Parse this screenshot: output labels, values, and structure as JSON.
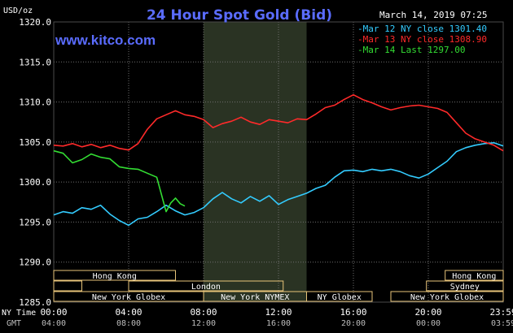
{
  "title": "24 Hour Spot Gold (Bid)",
  "website": "www.kitco.com",
  "timestamp": "March 14, 2019 07:25",
  "unit_label": "USD/oz",
  "row_labels": {
    "ny_time": "NY Time",
    "gmt": "GMT"
  },
  "colors": {
    "background": "#000000",
    "grid": "#6e6e6e",
    "title": "#5a6cff",
    "website": "#5a6cff",
    "axis_text": "#ffffff",
    "gmt_text": "#bdbdbd",
    "session_box": "#e8c47a",
    "ny_shade": "#2a3323",
    "mar12": "#33ccff",
    "mar13": "#ff2a2a",
    "mar14": "#33dd33"
  },
  "sessions": {
    "row1": [
      {
        "label": "Hong Kong",
        "start": 0.0,
        "end": 6.5
      },
      {
        "label": "Hong Kong",
        "start": 20.9,
        "end": 24.0
      }
    ],
    "row2": [
      {
        "label": "",
        "start": 0.0,
        "end": 1.5
      },
      {
        "label": "London",
        "start": 4.0,
        "end": 12.25
      },
      {
        "label": "Sydney",
        "start": 19.9,
        "end": 24.0
      }
    ],
    "row3": [
      {
        "label": "New York Globex",
        "start": 0.0,
        "end": 8.0
      },
      {
        "label": "New York NYMEX",
        "start": 8.0,
        "end": 13.5
      },
      {
        "label": "NY Globex",
        "start": 13.5,
        "end": 17.0
      },
      {
        "label": "New York Globex",
        "start": 18.0,
        "end": 24.0
      }
    ]
  },
  "chart_data": {
    "type": "line",
    "title": "24 Hour Spot Gold (Bid)",
    "ylabel": "USD/oz",
    "ylim": [
      1285.0,
      1320.0
    ],
    "yticks": [
      "1285.0",
      "1290.0",
      "1295.0",
      "1300.0",
      "1305.0",
      "1310.0",
      "1315.0",
      "1320.0"
    ],
    "xlim": [
      0,
      24
    ],
    "xticks_ny": [
      "00:00",
      "04:00",
      "08:00",
      "12:00",
      "16:00",
      "20:00",
      "23:59"
    ],
    "xticks_gmt": [
      "04:00",
      "08:00",
      "12:00",
      "16:00",
      "20:00",
      "00:00",
      "03:59"
    ],
    "grid": true,
    "legend_position": "top-right",
    "shaded_region": [
      8.0,
      13.5
    ],
    "series": [
      {
        "name": "Mar 12 NY close 1301.40",
        "color_key": "mar12",
        "x": [
          0,
          0.5,
          1,
          1.5,
          2,
          2.5,
          3,
          3.5,
          4,
          4.5,
          5,
          5.5,
          6,
          6.5,
          7,
          7.5,
          8,
          8.5,
          9,
          9.5,
          10,
          10.5,
          11,
          11.5,
          12,
          12.5,
          13,
          13.5,
          14,
          14.5,
          15,
          15.5,
          16,
          16.5,
          17,
          17.5,
          18,
          18.5,
          19,
          19.5,
          20,
          20.5,
          21,
          21.5,
          22,
          22.5,
          23,
          23.5,
          24
        ],
        "y": [
          1295.9,
          1296.3,
          1296.1,
          1296.8,
          1296.6,
          1297.1,
          1296.0,
          1295.2,
          1294.6,
          1295.4,
          1295.6,
          1296.3,
          1297.1,
          1296.4,
          1295.9,
          1296.2,
          1296.8,
          1297.9,
          1298.7,
          1297.9,
          1297.4,
          1298.2,
          1297.6,
          1298.3,
          1297.2,
          1297.8,
          1298.2,
          1298.6,
          1299.2,
          1299.6,
          1300.6,
          1301.4,
          1301.5,
          1301.3,
          1301.6,
          1301.4,
          1301.6,
          1301.3,
          1300.8,
          1300.5,
          1301.0,
          1301.8,
          1302.6,
          1303.8,
          1304.3,
          1304.6,
          1304.8,
          1304.9,
          1304.5
        ]
      },
      {
        "name": "Mar 13 NY close 1308.90",
        "color_key": "mar13",
        "x": [
          0,
          0.5,
          1,
          1.5,
          2,
          2.5,
          3,
          3.5,
          4,
          4.5,
          5,
          5.5,
          6,
          6.5,
          7,
          7.5,
          8,
          8.5,
          9,
          9.5,
          10,
          10.5,
          11,
          11.5,
          12,
          12.5,
          13,
          13.5,
          14,
          14.5,
          15,
          15.5,
          16,
          16.5,
          17,
          17.5,
          18,
          18.5,
          19,
          19.5,
          20,
          20.5,
          21,
          21.5,
          22,
          22.5,
          23,
          23.5,
          24
        ],
        "y": [
          1304.6,
          1304.5,
          1304.8,
          1304.4,
          1304.7,
          1304.3,
          1304.6,
          1304.2,
          1304.0,
          1304.8,
          1306.6,
          1307.9,
          1308.4,
          1308.9,
          1308.4,
          1308.2,
          1307.8,
          1306.8,
          1307.3,
          1307.6,
          1308.1,
          1307.5,
          1307.2,
          1307.8,
          1307.6,
          1307.4,
          1307.9,
          1307.8,
          1308.5,
          1309.3,
          1309.6,
          1310.3,
          1310.9,
          1310.3,
          1309.9,
          1309.4,
          1309.0,
          1309.3,
          1309.5,
          1309.6,
          1309.4,
          1309.2,
          1308.7,
          1307.4,
          1306.1,
          1305.4,
          1305.0,
          1304.6,
          1303.9
        ]
      },
      {
        "name": "Mar 14 Last 1297.00",
        "color_key": "mar14",
        "x": [
          0,
          0.5,
          1,
          1.5,
          2,
          2.5,
          3,
          3.5,
          4,
          4.5,
          5,
          5.5,
          6,
          6.25,
          6.5,
          6.75,
          7
        ],
        "y": [
          1303.9,
          1303.6,
          1302.4,
          1302.8,
          1303.5,
          1303.1,
          1302.9,
          1301.9,
          1301.7,
          1301.6,
          1301.1,
          1300.6,
          1296.3,
          1297.4,
          1298.0,
          1297.3,
          1297.0
        ]
      }
    ]
  }
}
